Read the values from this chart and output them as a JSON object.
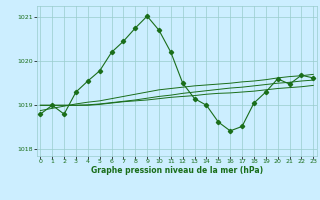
{
  "x": [
    0,
    1,
    2,
    3,
    4,
    5,
    6,
    7,
    8,
    9,
    10,
    11,
    12,
    13,
    14,
    15,
    16,
    17,
    18,
    19,
    20,
    21,
    22,
    23
  ],
  "line1": [
    1018.8,
    1019.0,
    1018.8,
    1019.3,
    1019.55,
    1019.78,
    1020.2,
    1020.45,
    1020.75,
    1021.02,
    1020.7,
    1020.2,
    1019.5,
    1019.15,
    1019.0,
    1018.62,
    1018.42,
    1018.52,
    1019.05,
    1019.3,
    1019.6,
    1019.48,
    1019.68,
    1019.62
  ],
  "line2": [
    1019.0,
    1019.0,
    1019.0,
    1019.0,
    1019.0,
    1019.02,
    1019.05,
    1019.08,
    1019.1,
    1019.12,
    1019.15,
    1019.18,
    1019.2,
    1019.22,
    1019.25,
    1019.27,
    1019.28,
    1019.3,
    1019.32,
    1019.35,
    1019.38,
    1019.4,
    1019.42,
    1019.45
  ],
  "line3": [
    1018.88,
    1018.93,
    1018.98,
    1019.03,
    1019.07,
    1019.1,
    1019.15,
    1019.2,
    1019.25,
    1019.3,
    1019.35,
    1019.38,
    1019.41,
    1019.44,
    1019.46,
    1019.48,
    1019.5,
    1019.53,
    1019.55,
    1019.58,
    1019.62,
    1019.65,
    1019.67,
    1019.7
  ],
  "line4": [
    1019.0,
    1019.0,
    1019.0,
    1019.0,
    1019.01,
    1019.03,
    1019.06,
    1019.09,
    1019.12,
    1019.16,
    1019.2,
    1019.23,
    1019.27,
    1019.3,
    1019.33,
    1019.36,
    1019.39,
    1019.41,
    1019.44,
    1019.47,
    1019.5,
    1019.52,
    1019.55,
    1019.57
  ],
  "line_color": "#1a6e1a",
  "bg_color": "#cceeff",
  "grid_color": "#99cccc",
  "xlabel": "Graphe pression niveau de la mer (hPa)",
  "yticks": [
    1018,
    1019,
    1020,
    1021
  ],
  "xticks": [
    0,
    1,
    2,
    3,
    4,
    5,
    6,
    7,
    8,
    9,
    10,
    11,
    12,
    13,
    14,
    15,
    16,
    17,
    18,
    19,
    20,
    21,
    22,
    23
  ],
  "ylim": [
    1017.85,
    1021.25
  ],
  "xlim": [
    -0.3,
    23.3
  ]
}
